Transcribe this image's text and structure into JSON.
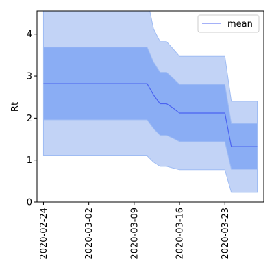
{
  "chart_data": {
    "type": "area",
    "title": "",
    "xlabel": "",
    "ylabel": "Rt",
    "x_tick_labels": [
      "2020-02-24",
      "2020-03-02",
      "2020-03-09",
      "2020-03-16",
      "2020-03-23"
    ],
    "y_ticks": [
      0,
      1,
      2,
      3,
      4
    ],
    "ylim": [
      0,
      4.55
    ],
    "xlim": [
      "2020-02-23",
      "2020-03-29"
    ],
    "grid": false,
    "legend": {
      "position": "top-right",
      "entries": [
        "mean"
      ]
    },
    "x": [
      "2020-02-24",
      "2020-02-25",
      "2020-02-26",
      "2020-02-27",
      "2020-02-28",
      "2020-02-29",
      "2020-03-01",
      "2020-03-02",
      "2020-03-03",
      "2020-03-04",
      "2020-03-05",
      "2020-03-06",
      "2020-03-07",
      "2020-03-08",
      "2020-03-09",
      "2020-03-10",
      "2020-03-11",
      "2020-03-12",
      "2020-03-13",
      "2020-03-14",
      "2020-03-15",
      "2020-03-16",
      "2020-03-17",
      "2020-03-18",
      "2020-03-19",
      "2020-03-20",
      "2020-03-21",
      "2020-03-22",
      "2020-03-23",
      "2020-03-24",
      "2020-03-25",
      "2020-03-26",
      "2020-03-27",
      "2020-03-28"
    ],
    "series": [
      {
        "name": "mean",
        "values": [
          2.82,
          2.82,
          2.82,
          2.82,
          2.82,
          2.82,
          2.82,
          2.82,
          2.82,
          2.82,
          2.82,
          2.82,
          2.82,
          2.82,
          2.82,
          2.82,
          2.82,
          2.55,
          2.34,
          2.34,
          2.24,
          2.12,
          2.12,
          2.12,
          2.12,
          2.12,
          2.12,
          2.12,
          2.12,
          1.32,
          1.32,
          1.32,
          1.32,
          1.32
        ]
      }
    ],
    "inner_band": {
      "lower": [
        1.96,
        1.96,
        1.96,
        1.96,
        1.96,
        1.96,
        1.96,
        1.96,
        1.96,
        1.96,
        1.96,
        1.96,
        1.96,
        1.96,
        1.96,
        1.96,
        1.96,
        1.75,
        1.59,
        1.59,
        1.52,
        1.44,
        1.44,
        1.44,
        1.44,
        1.44,
        1.44,
        1.44,
        1.44,
        0.78,
        0.78,
        0.78,
        0.78,
        0.78
      ],
      "upper": [
        3.69,
        3.69,
        3.69,
        3.69,
        3.69,
        3.69,
        3.69,
        3.69,
        3.69,
        3.69,
        3.69,
        3.69,
        3.69,
        3.69,
        3.69,
        3.69,
        3.69,
        3.33,
        3.09,
        3.09,
        2.95,
        2.8,
        2.8,
        2.8,
        2.8,
        2.8,
        2.8,
        2.8,
        2.8,
        1.87,
        1.87,
        1.87,
        1.87,
        1.87
      ]
    },
    "outer_band": {
      "lower": [
        1.1,
        1.1,
        1.1,
        1.1,
        1.1,
        1.1,
        1.1,
        1.1,
        1.1,
        1.1,
        1.1,
        1.1,
        1.1,
        1.1,
        1.1,
        1.1,
        1.1,
        0.95,
        0.85,
        0.85,
        0.81,
        0.77,
        0.77,
        0.77,
        0.77,
        0.77,
        0.77,
        0.77,
        0.77,
        0.23,
        0.23,
        0.23,
        0.23,
        0.23
      ],
      "upper": [
        4.85,
        4.85,
        4.85,
        4.85,
        4.85,
        4.85,
        4.85,
        4.85,
        4.85,
        4.85,
        4.85,
        4.85,
        4.85,
        4.85,
        4.85,
        4.85,
        4.85,
        4.12,
        3.82,
        3.82,
        3.65,
        3.47,
        3.47,
        3.47,
        3.47,
        3.47,
        3.47,
        3.47,
        3.47,
        2.4,
        2.4,
        2.4,
        2.4,
        2.4
      ]
    },
    "colors": {
      "mean_line": "#4b63f0",
      "inner_band": "#8aadf4",
      "outer_band": "#c2d3f6",
      "band_edge": "#9fbcf3"
    }
  }
}
